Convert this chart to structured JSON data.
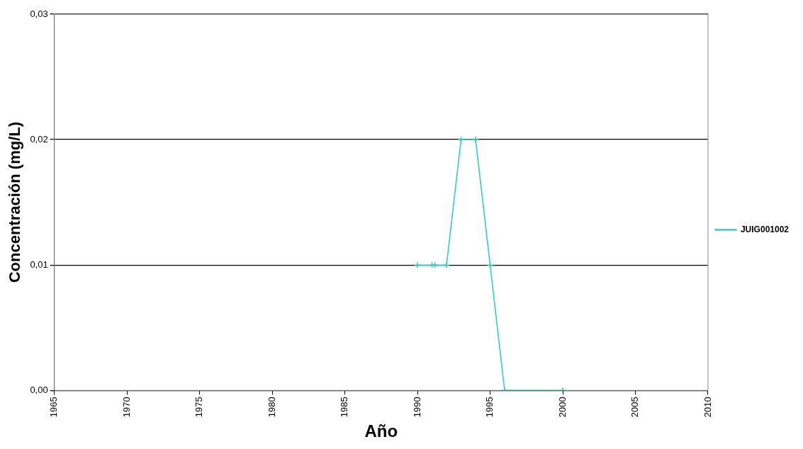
{
  "chart_data": {
    "type": "line",
    "xlabel": "Año",
    "ylabel": "Concentración (mg/L)",
    "xlim": [
      1965,
      2010
    ],
    "xticks": [
      1965,
      1970,
      1975,
      1980,
      1985,
      1990,
      1995,
      2000,
      2005,
      2010
    ],
    "ylim": [
      0,
      0.03
    ],
    "yticks": [
      {
        "value": 0,
        "label": "0,00"
      },
      {
        "value": 0.01,
        "label": "0,01"
      },
      {
        "value": 0.02,
        "label": "0,02"
      },
      {
        "value": 0.03,
        "label": "0,03"
      }
    ],
    "grid": "y",
    "legend": "right",
    "marker": "cross",
    "line_style": "solid",
    "series": [
      {
        "name": "JUIG001002",
        "color": "#33cccc",
        "x": [
          1990,
          1991,
          1991.2,
          1992,
          1993,
          1994,
          1995,
          1996,
          2000
        ],
        "values": [
          0.01,
          0.01,
          0.01,
          0.01,
          0.02,
          0.02,
          0.01,
          0,
          0
        ]
      }
    ]
  }
}
